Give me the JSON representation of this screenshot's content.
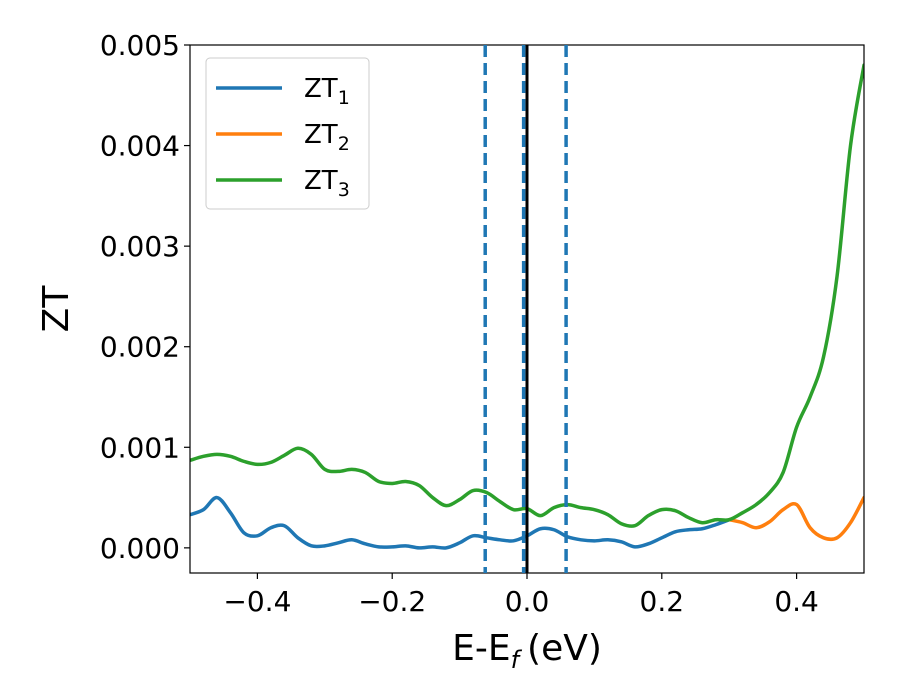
{
  "chart_data": {
    "type": "line",
    "title": "",
    "xlabel": "E-E",
    "xlabel_sub": "f",
    "xlabel_unit": "(eV)",
    "ylabel": "ZT",
    "xlim": [
      -0.5,
      0.5
    ],
    "ylim": [
      -0.00025,
      0.005
    ],
    "xticks": [
      -0.4,
      -0.2,
      0.0,
      0.2,
      0.4
    ],
    "xtick_labels": [
      "−0.4",
      "−0.2",
      "0.0",
      "0.2",
      "0.4"
    ],
    "yticks": [
      0.0,
      0.001,
      0.002,
      0.003,
      0.004,
      0.005
    ],
    "ytick_labels": [
      "0.000",
      "0.001",
      "0.002",
      "0.003",
      "0.004",
      "0.005"
    ],
    "legend": {
      "placement": "top-left"
    },
    "series": [
      {
        "name": "ZT",
        "name_sub": "1",
        "color": "#1f77b4",
        "x": [
          -0.5,
          -0.48,
          -0.46,
          -0.44,
          -0.42,
          -0.4,
          -0.38,
          -0.36,
          -0.34,
          -0.32,
          -0.3,
          -0.28,
          -0.26,
          -0.24,
          -0.22,
          -0.2,
          -0.18,
          -0.16,
          -0.14,
          -0.12,
          -0.1,
          -0.08,
          -0.06,
          -0.04,
          -0.02,
          0.0,
          0.02,
          0.04,
          0.06,
          0.08,
          0.1,
          0.12,
          0.14,
          0.16,
          0.18,
          0.2,
          0.22,
          0.24,
          0.26,
          0.28,
          0.3
        ],
        "y": [
          0.00033,
          0.00038,
          0.0005,
          0.00035,
          0.00015,
          0.00012,
          0.0002,
          0.00022,
          0.0001,
          2e-05,
          2e-05,
          5e-05,
          8e-05,
          4e-05,
          1e-05,
          1e-05,
          2e-05,
          0.0,
          1e-05,
          0.0,
          5e-05,
          0.00012,
          0.0001,
          8e-05,
          7e-05,
          0.00012,
          0.00019,
          0.00018,
          0.00011,
          8e-05,
          7e-05,
          8e-05,
          6e-05,
          1e-05,
          4e-05,
          0.0001,
          0.00016,
          0.00018,
          0.00019,
          0.00023,
          0.00028
        ]
      },
      {
        "name": "ZT",
        "name_sub": "2",
        "color": "#ff7f0e",
        "x": [
          0.3,
          0.32,
          0.34,
          0.36,
          0.38,
          0.4,
          0.42,
          0.44,
          0.46,
          0.48,
          0.5
        ],
        "y": [
          0.00028,
          0.00025,
          0.0002,
          0.00026,
          0.00038,
          0.00043,
          0.0002,
          0.0001,
          0.0001,
          0.00025,
          0.0005
        ]
      },
      {
        "name": "ZT",
        "name_sub": "3",
        "color": "#2ca02c",
        "x": [
          -0.5,
          -0.48,
          -0.46,
          -0.44,
          -0.42,
          -0.4,
          -0.38,
          -0.36,
          -0.34,
          -0.32,
          -0.3,
          -0.28,
          -0.26,
          -0.24,
          -0.22,
          -0.2,
          -0.18,
          -0.16,
          -0.14,
          -0.12,
          -0.1,
          -0.08,
          -0.06,
          -0.04,
          -0.02,
          0.0,
          0.02,
          0.04,
          0.06,
          0.08,
          0.1,
          0.12,
          0.14,
          0.16,
          0.18,
          0.2,
          0.22,
          0.24,
          0.26,
          0.28,
          0.3,
          0.32,
          0.34,
          0.36,
          0.38,
          0.4,
          0.42,
          0.44,
          0.46,
          0.48,
          0.5
        ],
        "y": [
          0.00087,
          0.00091,
          0.00093,
          0.00091,
          0.00086,
          0.00083,
          0.00085,
          0.00092,
          0.00099,
          0.00093,
          0.00078,
          0.00076,
          0.00078,
          0.00075,
          0.00066,
          0.00064,
          0.00066,
          0.00062,
          0.0005,
          0.00042,
          0.00048,
          0.00057,
          0.00055,
          0.00046,
          0.00038,
          0.00039,
          0.00032,
          0.0004,
          0.00043,
          0.0004,
          0.00038,
          0.00033,
          0.00024,
          0.00022,
          0.00032,
          0.00038,
          0.00037,
          0.0003,
          0.00025,
          0.00028,
          0.00028,
          0.00035,
          0.00043,
          0.00055,
          0.00075,
          0.0012,
          0.0015,
          0.0019,
          0.0027,
          0.004,
          0.0048
        ]
      }
    ],
    "reference_lines": [
      {
        "x": -0.062,
        "style": "dashed",
        "color": "#1f77b4"
      },
      {
        "x": -0.005,
        "style": "dashed",
        "color": "#1f77b4"
      },
      {
        "x": 0.058,
        "style": "dashed",
        "color": "#1f77b4"
      },
      {
        "x": 0.0,
        "style": "solid",
        "color": "#000000"
      }
    ]
  }
}
